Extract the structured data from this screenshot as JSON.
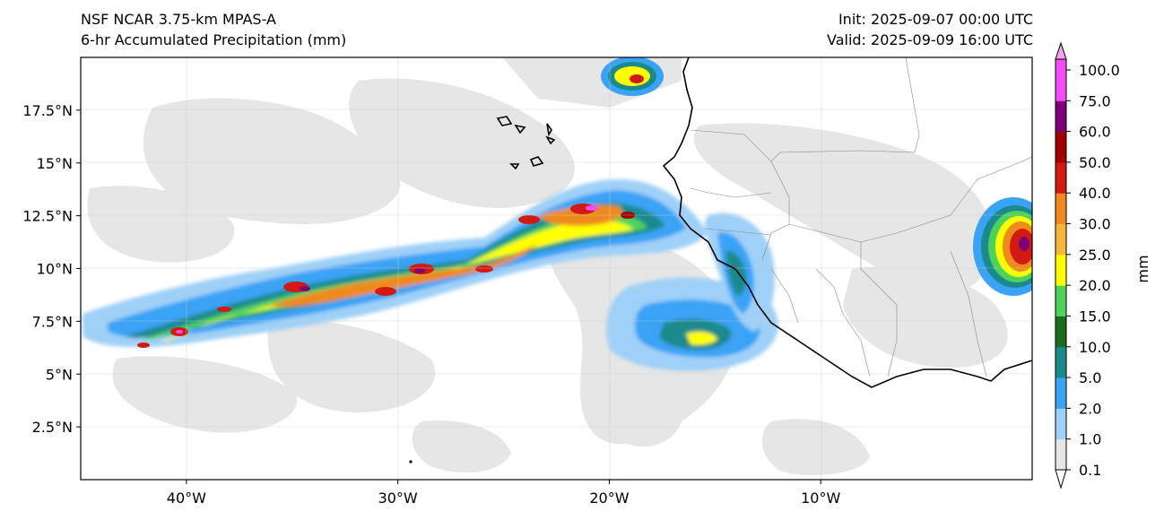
{
  "header": {
    "model": "NSF NCAR 3.75-km MPAS-A",
    "field": "6-hr Accumulated Precipitation (mm)",
    "init": "Init: 2025-09-07 00:00 UTC",
    "valid": "Valid: 2025-09-09 16:00 UTC"
  },
  "map": {
    "lon_range": [
      -45,
      0
    ],
    "lat_range": [
      0,
      20
    ],
    "lon_ticks": [
      {
        "value": -40,
        "label": "40°W"
      },
      {
        "value": -30,
        "label": "30°W"
      },
      {
        "value": -20,
        "label": "20°W"
      },
      {
        "value": -10,
        "label": "10°W"
      }
    ],
    "lat_ticks": [
      {
        "value": 2.5,
        "label": "2.5°N"
      },
      {
        "value": 5,
        "label": "5°N"
      },
      {
        "value": 7.5,
        "label": "7.5°N"
      },
      {
        "value": 10,
        "label": "10°N"
      },
      {
        "value": 12.5,
        "label": "12.5°N"
      },
      {
        "value": 15,
        "label": "15°N"
      },
      {
        "value": 17.5,
        "label": "17.5°N"
      }
    ],
    "gridlines": true
  },
  "colorbar": {
    "unit_label": "mm",
    "levels": [
      {
        "label": "0.1",
        "color": "#e6e6e6"
      },
      {
        "label": "1.0",
        "color": "#9fd0f7"
      },
      {
        "label": "2.0",
        "color": "#3aa3f5"
      },
      {
        "label": "5.0",
        "color": "#1a8a8c"
      },
      {
        "label": "10.0",
        "color": "#1d6b1d"
      },
      {
        "label": "15.0",
        "color": "#4fd25a"
      },
      {
        "label": "20.0",
        "color": "#ffff00"
      },
      {
        "label": "25.0",
        "color": "#f6b63a"
      },
      {
        "label": "30.0",
        "color": "#ee8a1e"
      },
      {
        "label": "40.0",
        "color": "#d21a12"
      },
      {
        "label": "50.0",
        "color": "#a30000"
      },
      {
        "label": "60.0",
        "color": "#7d0078"
      },
      {
        "label": "75.0",
        "color": "#f54df5"
      },
      {
        "label": "100.0",
        "color": "#ffffff"
      }
    ],
    "over_color": "#f0a3f0"
  }
}
